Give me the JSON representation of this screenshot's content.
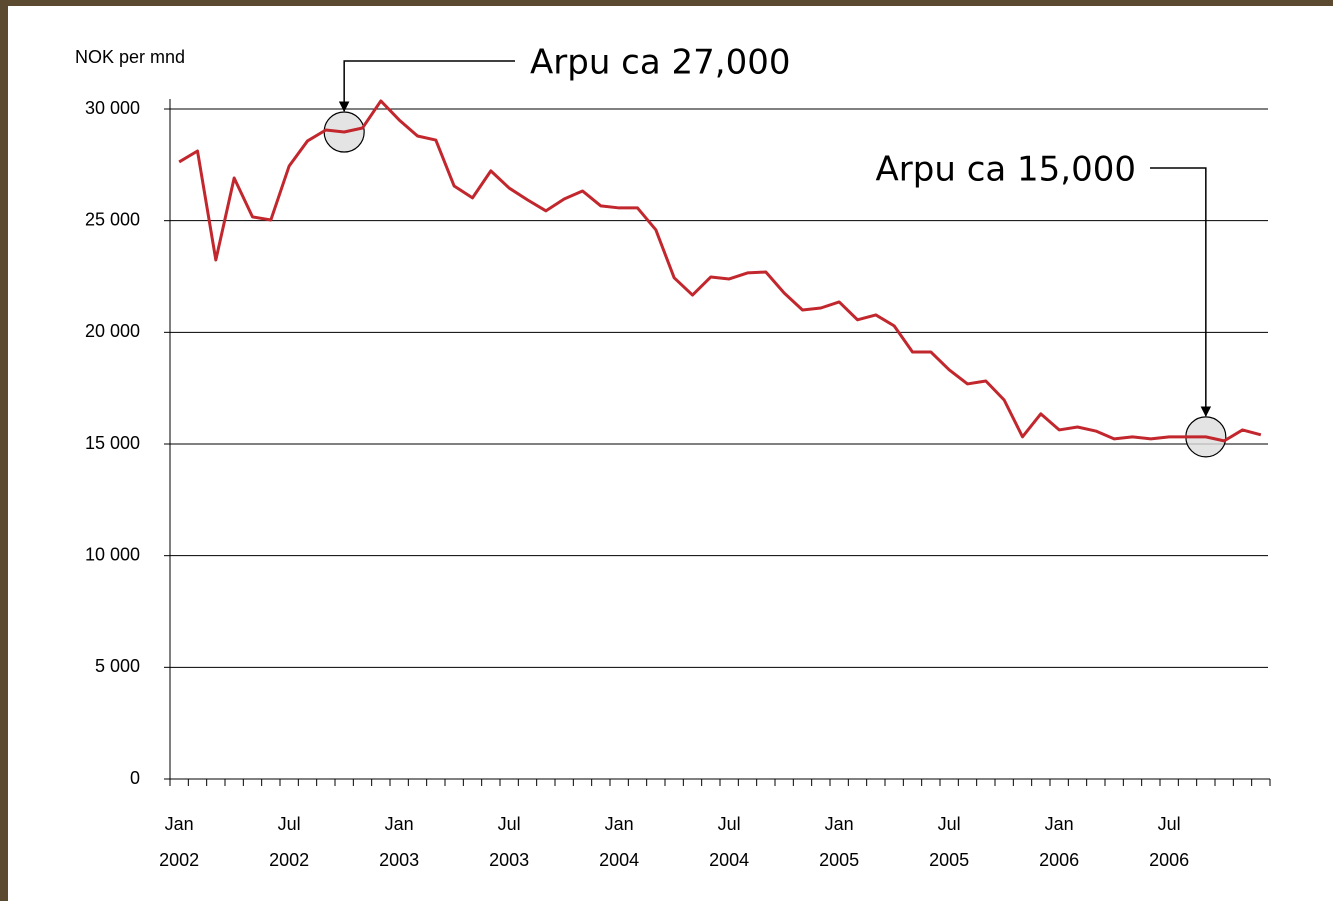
{
  "chart_data": {
    "type": "line",
    "y_label": "NOK per mnd",
    "categories": [
      [
        "Jan",
        "2002"
      ],
      null,
      null,
      null,
      null,
      null,
      [
        "Jul",
        "2002"
      ],
      null,
      null,
      null,
      null,
      null,
      [
        "Jan",
        "2003"
      ],
      null,
      null,
      null,
      null,
      null,
      [
        "Jul",
        "2003"
      ],
      null,
      null,
      null,
      null,
      null,
      [
        "Jan",
        "2004"
      ],
      null,
      null,
      null,
      null,
      null,
      [
        "Jul",
        "2004"
      ],
      null,
      null,
      null,
      null,
      null,
      [
        "Jan",
        "2005"
      ],
      null,
      null,
      null,
      null,
      null,
      [
        "Jul",
        "2005"
      ],
      null,
      null,
      null,
      null,
      null,
      [
        "Jan",
        "2006"
      ],
      null,
      null,
      null,
      null,
      null,
      [
        "Jul",
        "2006"
      ],
      null,
      null,
      null,
      null,
      null
    ],
    "series": [
      {
        "name": "Arpu",
        "color": "#c1272d",
        "values": [
          27630,
          28120,
          23240,
          26910,
          25170,
          25030,
          27450,
          28570,
          29060,
          28970,
          29150,
          30360,
          29510,
          28790,
          28610,
          26550,
          26020,
          27230,
          26460,
          25930,
          25440,
          25970,
          26330,
          25660,
          25570,
          25570,
          24590,
          22440,
          21670,
          22480,
          22390,
          22660,
          22700,
          21760,
          21000,
          21090,
          21360,
          20560,
          20780,
          20290,
          19120,
          19120,
          18320,
          17690,
          17820,
          16970,
          15320,
          16350,
          15630,
          15760,
          15580,
          15230,
          15320,
          15230,
          15320,
          15320,
          15320,
          15140,
          15630,
          15410
        ]
      }
    ],
    "ylim": [
      0,
      30000
    ],
    "yticks": [
      0,
      {
        "value": 5000,
        "label": "5 000"
      },
      {
        "value": 10000,
        "label": "10 000"
      },
      {
        "value": 15000,
        "label": "15 000"
      },
      {
        "value": 20000,
        "label": "20 000"
      },
      {
        "value": 25000,
        "label": "25 000"
      },
      {
        "value": 30000,
        "label": "30 000"
      }
    ],
    "grid": true,
    "annotations": [
      "Arpu ca 27,000",
      "Arpu ca 15,000"
    ]
  }
}
